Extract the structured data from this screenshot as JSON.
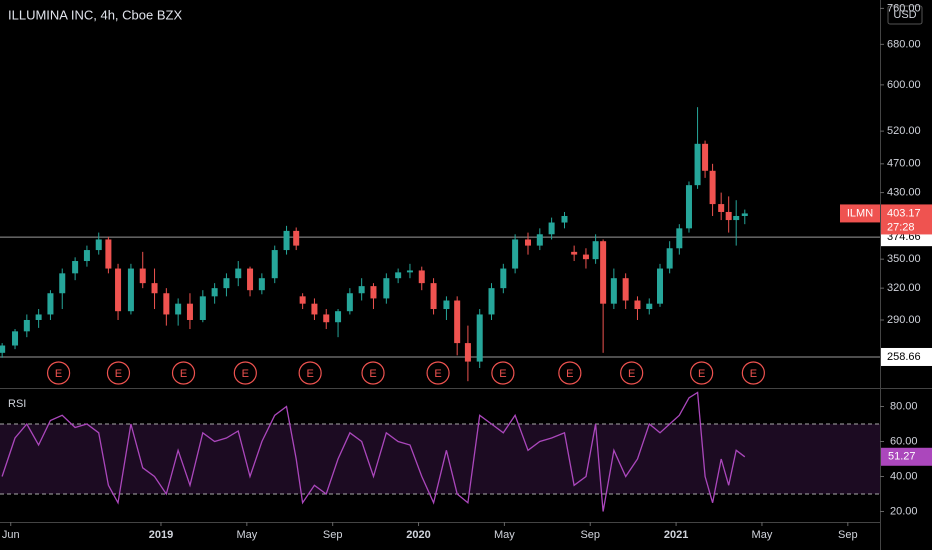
{
  "chart_data": [
    {
      "type": "candlestick",
      "title": "ILLUMINA INC, 4h, Cboe BZX",
      "currency": "USD",
      "x": [
        -0.4,
        0.2,
        0.75,
        1.3,
        1.85,
        2.4,
        3.0,
        3.55,
        4.1,
        4.55,
        5.0,
        5.6,
        6.15,
        6.7,
        7.25,
        7.8,
        8.35,
        8.95,
        9.5,
        10.05,
        10.6,
        11.15,
        11.7,
        12.3,
        12.85,
        13.3,
        13.6,
        14.15,
        14.7,
        15.25,
        15.8,
        16.35,
        16.9,
        17.5,
        18.05,
        18.6,
        19.15,
        19.7,
        20.3,
        20.8,
        21.3,
        21.85,
        22.4,
        22.95,
        23.5,
        24.1,
        24.65,
        25.2,
        25.8,
        26.25,
        26.8,
        27.25,
        27.6,
        28.1,
        28.65,
        29.2,
        29.75,
        30.25,
        30.7,
        31.15,
        31.6,
        32.0,
        32.35,
        32.7,
        33.1,
        33.45,
        33.8,
        34.2
      ],
      "open": [
        262,
        268,
        280,
        290,
        295,
        315,
        335,
        348,
        360,
        372,
        340,
        298,
        340,
        325,
        315,
        295,
        305,
        290,
        312,
        320,
        330,
        340,
        318,
        330,
        360,
        382,
        312,
        305,
        295,
        288,
        298,
        315,
        322,
        310,
        330,
        336,
        338,
        325,
        300,
        308,
        270,
        255,
        295,
        320,
        340,
        372,
        365,
        378,
        392,
        358,
        355,
        350,
        370,
        305,
        330,
        308,
        300,
        305,
        340,
        362,
        385,
        440,
        500,
        460,
        415,
        405,
        395,
        400
      ],
      "high": [
        270,
        282,
        295,
        300,
        318,
        340,
        352,
        365,
        380,
        375,
        345,
        345,
        358,
        340,
        320,
        310,
        315,
        318,
        325,
        335,
        348,
        342,
        335,
        365,
        388,
        386,
        315,
        310,
        300,
        300,
        320,
        330,
        325,
        335,
        340,
        345,
        342,
        330,
        312,
        312,
        285,
        300,
        325,
        345,
        378,
        380,
        385,
        398,
        405,
        365,
        362,
        378,
        372,
        340,
        335,
        312,
        310,
        345,
        370,
        390,
        445,
        560,
        505,
        470,
        430,
        425,
        420,
        408
      ],
      "low": [
        258,
        265,
        275,
        283,
        290,
        300,
        328,
        342,
        355,
        335,
        290,
        295,
        320,
        300,
        285,
        285,
        282,
        288,
        305,
        312,
        322,
        312,
        314,
        325,
        355,
        360,
        300,
        290,
        282,
        275,
        295,
        308,
        300,
        305,
        325,
        330,
        318,
        295,
        290,
        260,
        240,
        250,
        290,
        315,
        335,
        355,
        360,
        372,
        385,
        348,
        340,
        345,
        262,
        300,
        300,
        290,
        295,
        302,
        335,
        355,
        380,
        435,
        450,
        400,
        395,
        380,
        365,
        390
      ],
      "close": [
        268,
        280,
        290,
        295,
        315,
        335,
        348,
        360,
        372,
        340,
        298,
        340,
        325,
        315,
        295,
        305,
        290,
        312,
        320,
        330,
        340,
        318,
        330,
        360,
        382,
        365,
        305,
        295,
        288,
        298,
        315,
        322,
        310,
        330,
        336,
        338,
        325,
        300,
        308,
        270,
        255,
        295,
        320,
        340,
        372,
        365,
        378,
        392,
        400,
        355,
        350,
        370,
        305,
        330,
        308,
        300,
        305,
        340,
        362,
        385,
        440,
        500,
        460,
        415,
        405,
        395,
        400,
        403.17
      ],
      "up_color": "#26a69a",
      "down_color": "#ef5350",
      "log_scale": true,
      "ylim": [
        235,
        780
      ],
      "yticks": [
        {
          "value": 290,
          "label": "290.00"
        },
        {
          "value": 320,
          "label": "320.00"
        },
        {
          "value": 350,
          "label": "350.00"
        },
        {
          "value": 430,
          "label": "430.00"
        },
        {
          "value": 470,
          "label": "470.00"
        },
        {
          "value": 520,
          "label": "520.00"
        },
        {
          "value": 600,
          "label": "600.00"
        },
        {
          "value": 680,
          "label": "680.00"
        },
        {
          "value": 760,
          "label": "760.00"
        }
      ],
      "xlim": [
        -0.5,
        40.5
      ],
      "xticks": [
        {
          "value": 0,
          "label": "Jun"
        },
        {
          "value": 7,
          "label": "2019"
        },
        {
          "value": 11,
          "label": "May"
        },
        {
          "value": 15,
          "label": "Sep"
        },
        {
          "value": 19,
          "label": "2020"
        },
        {
          "value": 23,
          "label": "May"
        },
        {
          "value": 27,
          "label": "Sep"
        },
        {
          "value": 31,
          "label": "2021"
        },
        {
          "value": 35,
          "label": "May"
        },
        {
          "value": 39,
          "label": "Sep"
        }
      ],
      "levels": [
        374.66,
        258.66
      ],
      "symbol": "ILMN",
      "countdown": "27:28",
      "event_label": "E",
      "event_x": [
        2.23,
        5.02,
        8.05,
        10.93,
        13.95,
        16.88,
        19.91,
        22.93,
        26.05,
        28.93,
        32.19,
        34.6
      ]
    },
    {
      "type": "line",
      "title": "RSI",
      "color": "#ab47bc",
      "values": [
        40,
        62,
        70,
        58,
        72,
        75,
        68,
        70,
        65,
        35,
        25,
        70,
        45,
        40,
        30,
        55,
        35,
        65,
        60,
        62,
        66,
        40,
        60,
        75,
        80,
        50,
        25,
        35,
        30,
        50,
        65,
        60,
        40,
        65,
        60,
        58,
        40,
        25,
        55,
        30,
        25,
        75,
        70,
        65,
        75,
        55,
        60,
        62,
        65,
        35,
        40,
        70,
        20,
        55,
        40,
        50,
        70,
        65,
        70,
        75,
        85,
        88,
        40,
        25,
        50,
        35,
        55,
        51.27
      ],
      "ylim": [
        14,
        90
      ],
      "yticks": [
        {
          "value": 20,
          "label": "20.00"
        },
        {
          "value": 40,
          "label": "40.00"
        },
        {
          "value": 60,
          "label": "60.00"
        },
        {
          "value": 80,
          "label": "80.00"
        }
      ],
      "bands": [
        70,
        30
      ]
    }
  ]
}
